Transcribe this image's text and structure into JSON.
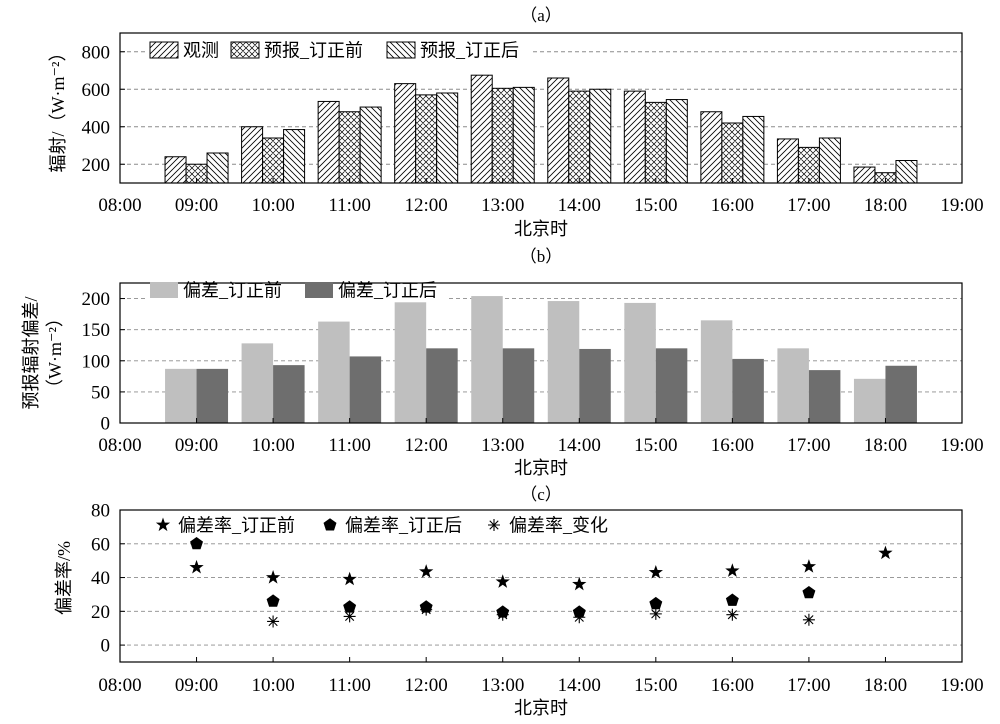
{
  "chart_data": [
    {
      "panel_label": "（a）",
      "type": "bar",
      "xlim": [
        "08:00",
        "19:00"
      ],
      "categories": [
        "09:00",
        "10:00",
        "11:00",
        "12:00",
        "13:00",
        "14:00",
        "15:00",
        "16:00",
        "17:00",
        "18:00"
      ],
      "xlabel": "北京时",
      "ylabel": [
        "辐射/（W·m⁻²）"
      ],
      "ylim": [
        100,
        900
      ],
      "y_ticks": [
        200,
        400,
        600,
        800
      ],
      "grid": true,
      "legend": "top-left",
      "series": [
        {
          "name": "观测",
          "fill": "hatch-forward",
          "values": [
            240,
            400,
            535,
            630,
            675,
            660,
            590,
            480,
            335,
            185
          ]
        },
        {
          "name": "预报_订正前",
          "fill": "hatch-cross",
          "values": [
            200,
            340,
            480,
            570,
            605,
            590,
            530,
            420,
            290,
            155
          ]
        },
        {
          "name": "预报_订正后",
          "fill": "hatch-back",
          "values": [
            260,
            385,
            505,
            580,
            610,
            600,
            545,
            455,
            340,
            220
          ]
        }
      ]
    },
    {
      "panel_label": "（b）",
      "type": "bar",
      "xlim": [
        "08:00",
        "19:00"
      ],
      "categories": [
        "09:00",
        "10:00",
        "11:00",
        "12:00",
        "13:00",
        "14:00",
        "15:00",
        "16:00",
        "17:00",
        "18:00"
      ],
      "xlabel": "北京时",
      "ylabel": [
        "预报辐射偏差/",
        "（W·m⁻²）"
      ],
      "ylim": [
        0,
        225
      ],
      "y_ticks": [
        0,
        50,
        100,
        150,
        200
      ],
      "grid": true,
      "legend": "top-left",
      "series": [
        {
          "name": "偏差_订正前",
          "color": "#bfbfbf",
          "values": [
            87,
            128,
            163,
            194,
            204,
            196,
            193,
            165,
            120,
            71
          ]
        },
        {
          "name": "偏差_订正后",
          "color": "#6e6e6e",
          "values": [
            87,
            93,
            107,
            120,
            120,
            119,
            120,
            103,
            85,
            92
          ]
        }
      ]
    },
    {
      "panel_label": "（c）",
      "type": "scatter",
      "xlim": [
        "08:00",
        "19:00"
      ],
      "categories": [
        "09:00",
        "10:00",
        "11:00",
        "12:00",
        "13:00",
        "14:00",
        "15:00",
        "16:00",
        "17:00",
        "18:00"
      ],
      "xlabel": "北京时",
      "ylabel": [
        "偏差率/%"
      ],
      "ylim": [
        -10,
        80
      ],
      "y_ticks": [
        0,
        20,
        40,
        60,
        80
      ],
      "grid": true,
      "legend": "top-left",
      "series": [
        {
          "name": "偏差率_订正前",
          "marker": "star",
          "color": "#000000",
          "values": [
            46,
            40,
            39,
            43.5,
            37.5,
            36,
            43,
            44,
            46.5,
            54.5
          ]
        },
        {
          "name": "偏差率_订正后",
          "marker": "pentagon",
          "color": "#000000",
          "values": [
            60,
            26,
            22.5,
            22.5,
            19.5,
            19.5,
            24.5,
            26.5,
            31,
            null
          ]
        },
        {
          "name": "偏差率_变化",
          "marker": "asterisk",
          "color": "#000000",
          "values": [
            null,
            14,
            17,
            21,
            18,
            16.5,
            18.5,
            18,
            15,
            null
          ]
        }
      ]
    }
  ]
}
